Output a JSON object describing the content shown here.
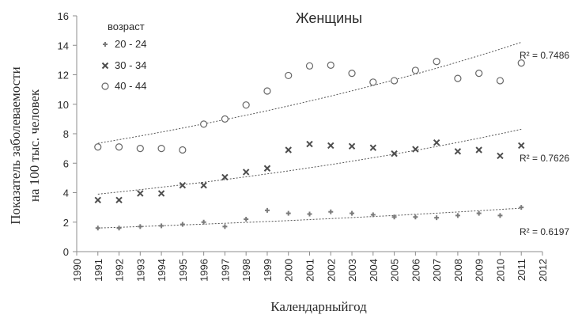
{
  "chart_data": {
    "type": "scatter",
    "title": "Женщины",
    "xlabel": "Календарныйгод",
    "ylabel_line1": "Показатель заболеваемости",
    "ylabel_line2": "на 100 тыс. человек",
    "xlim": [
      1990,
      2012
    ],
    "ylim": [
      0,
      16
    ],
    "x_ticks": [
      "1990",
      "1991",
      "1992",
      "1993",
      "1994",
      "1995",
      "1996",
      "1997",
      "1998",
      "1999",
      "2000",
      "2001",
      "2002",
      "2003",
      "2004",
      "2005",
      "2006",
      "2007",
      "2008",
      "2009",
      "2010",
      "2011",
      "2012"
    ],
    "y_ticks": [
      "0",
      "2",
      "4",
      "6",
      "8",
      "10",
      "12",
      "14",
      "16"
    ],
    "grid": false,
    "legend": {
      "title": "возраст",
      "placement": "top-left"
    },
    "x": [
      1991,
      1992,
      1993,
      1994,
      1995,
      1996,
      1997,
      1998,
      1999,
      2000,
      2001,
      2002,
      2003,
      2004,
      2005,
      2006,
      2007,
      2008,
      2009,
      2010,
      2011
    ],
    "series": [
      {
        "name": "20 - 24",
        "marker": "plus",
        "color": "#7a7a7a",
        "values": [
          1.6,
          1.6,
          1.7,
          1.75,
          1.85,
          2.0,
          1.7,
          2.2,
          2.8,
          2.6,
          2.55,
          2.7,
          2.6,
          2.5,
          2.35,
          2.35,
          2.3,
          2.45,
          2.6,
          2.45,
          3.0
        ],
        "trendline": {
          "type": "exponential",
          "start": 1.6,
          "end": 2.95,
          "r2_label": "R² = 0.6197"
        }
      },
      {
        "name": "30 - 34",
        "marker": "x",
        "color": "#4d4d4d",
        "values": [
          3.5,
          3.5,
          3.95,
          3.95,
          4.5,
          4.5,
          5.05,
          5.4,
          5.65,
          6.9,
          7.3,
          7.2,
          7.15,
          7.05,
          6.65,
          6.95,
          7.4,
          6.8,
          6.9,
          6.5,
          7.2
        ],
        "trendline": {
          "type": "exponential",
          "start": 3.9,
          "end": 8.3,
          "r2_label": "R² = 0.7626"
        }
      },
      {
        "name": "40 - 44",
        "marker": "circle",
        "color": "#666666",
        "values": [
          7.1,
          7.1,
          7.0,
          7.0,
          6.9,
          8.65,
          9.0,
          9.95,
          10.9,
          11.95,
          12.6,
          12.65,
          12.1,
          11.5,
          11.6,
          12.3,
          12.9,
          11.75,
          12.1,
          11.6,
          12.8
        ],
        "trendline": {
          "type": "exponential",
          "start": 7.35,
          "end": 14.2,
          "r2_label": "R² = 0.7486"
        }
      }
    ]
  }
}
